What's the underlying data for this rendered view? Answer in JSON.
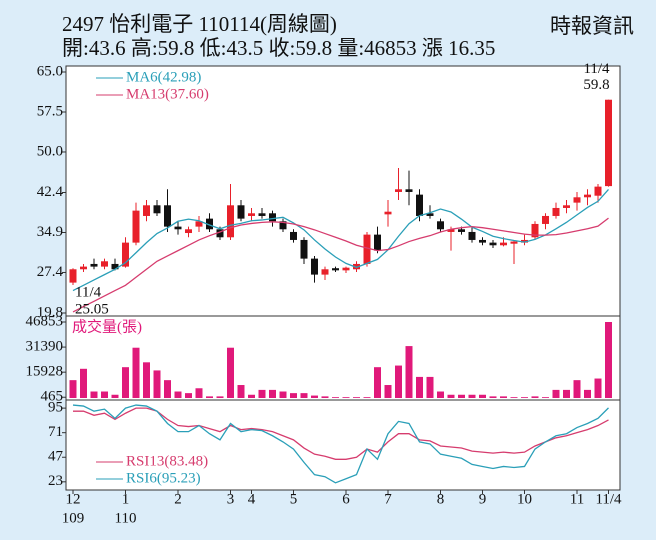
{
  "chart_data": [
    {
      "type": "candlestick",
      "title": "2497  怡利電子 110114(周線圖)",
      "subtitle": "開:43.6 高:59.8 低:43.5 收:59.8 量:46853 漲 16.35",
      "source": "時報資訊",
      "open": [
        25.5,
        28,
        29,
        28.5,
        29,
        28.5,
        33,
        38,
        40,
        40,
        36,
        34.8,
        36,
        37.5,
        35.5,
        34,
        40,
        38,
        38.5,
        38.5,
        37,
        35,
        33.5,
        30,
        27,
        28.2,
        27.8,
        28,
        29,
        34.5,
        38.3,
        42.5,
        43,
        42,
        38.5,
        37,
        35,
        35.5,
        35,
        33.5,
        33,
        32.5,
        32.8,
        33,
        34,
        36.5,
        38,
        39.5,
        40.5,
        41.5,
        41.8,
        43.6
      ],
      "high": [
        28.2,
        29,
        30,
        30,
        30,
        34,
        40.5,
        41,
        41,
        43,
        37,
        36,
        38,
        38.5,
        36,
        44,
        41,
        39.5,
        39.5,
        39,
        37.5,
        35.5,
        34,
        30.5,
        28.5,
        28.5,
        28.5,
        29.5,
        35,
        36,
        41,
        47,
        46.5,
        43,
        40,
        37.5,
        36,
        36,
        36,
        34,
        33.5,
        34,
        33.5,
        34.5,
        37,
        38.5,
        40.5,
        41,
        42.5,
        43,
        44,
        59.8
      ],
      "low": [
        25.05,
        27.5,
        28,
        28,
        27.8,
        28.3,
        32.5,
        37,
        38,
        35,
        34.5,
        34,
        35,
        35,
        33.5,
        33.5,
        37,
        37,
        37.5,
        36,
        35,
        33,
        29,
        25.5,
        26,
        27.5,
        27.3,
        27.5,
        28.5,
        31,
        36,
        41,
        40,
        37,
        37.5,
        35,
        31.5,
        34.5,
        33,
        32.5,
        32,
        32.3,
        29,
        32.5,
        33.5,
        35.5,
        37.5,
        38.5,
        39,
        40,
        40.5,
        43.5
      ],
      "close": [
        28,
        28.5,
        28.5,
        29.5,
        28,
        33,
        39,
        40,
        38.5,
        36,
        35.5,
        35.5,
        37,
        35.5,
        34,
        40,
        37.5,
        38.5,
        38,
        37,
        35.5,
        33.5,
        30,
        27,
        28,
        27.8,
        28.3,
        29,
        34.5,
        31.5,
        38.8,
        43,
        42.5,
        38,
        38,
        35.5,
        35.5,
        35,
        33.5,
        33,
        32.5,
        33,
        33.2,
        33.5,
        36.5,
        38,
        39.5,
        40,
        41.5,
        42,
        43.5,
        59.8
      ],
      "up_color": "#e8202a",
      "down_color": "#111111",
      "series": [
        {
          "name": "MA6(42.98)",
          "color": "#2a9fb8",
          "values": [
            24,
            25,
            26,
            27,
            28,
            29.25,
            31.1,
            33,
            34.7,
            35.75,
            37,
            37.4,
            37.1,
            36.3,
            35.6,
            36.25,
            36.6,
            37.1,
            37.25,
            37.5,
            37.75,
            36.7,
            35.4,
            33.5,
            31.8,
            30.3,
            29.1,
            28.35,
            29.1,
            29.85,
            31.65,
            34.2,
            36.55,
            38.05,
            38.6,
            39.3,
            38.75,
            37.4,
            35.9,
            35.1,
            34.2,
            33.75,
            33.4,
            33.1,
            33.6,
            34.45,
            35.6,
            36.8,
            38.2,
            39.6,
            40.75,
            42.98
          ]
        },
        {
          "name": "MA13(37.60)",
          "color": "#d63c6e",
          "values": [
            20,
            21,
            22,
            23,
            24,
            25,
            26.5,
            28,
            29.5,
            30.5,
            31.5,
            32.5,
            33.5,
            34.3,
            35,
            35.8,
            36.3,
            36.6,
            36.8,
            36.9,
            36.8,
            36.5,
            36,
            35.4,
            34.7,
            34,
            33.3,
            32.5,
            32,
            31.5,
            31.7,
            32.4,
            33.2,
            33.8,
            34.3,
            35,
            35.5,
            35.8,
            36,
            35.8,
            35.5,
            35.2,
            34.9,
            34.6,
            34.4,
            34.4,
            34.5,
            34.8,
            35.2,
            35.6,
            36.1,
            37.6
          ]
        }
      ],
      "ylim": [
        19.8,
        65
      ],
      "yticks": [
        19.8,
        27.4,
        34.9,
        42.4,
        {
          "value": 50,
          "label": "50.0"
        },
        57.5,
        {
          "value": 65,
          "label": "65.0"
        }
      ],
      "annotations": [
        {
          "x": 51,
          "text": "11/4",
          "value": 59.8
        },
        {
          "x": 0,
          "text": "11/4",
          "value": 25.05
        }
      ]
    },
    {
      "type": "bar",
      "title": "成交量(張)",
      "values": [
        11000,
        18000,
        4000,
        4000,
        2000,
        19000,
        31000,
        22000,
        17000,
        11000,
        4000,
        3000,
        6000,
        1000,
        1000,
        31000,
        8000,
        2000,
        5000,
        5000,
        4000,
        3000,
        3000,
        1500,
        1000,
        500,
        500,
        500,
        500,
        19000,
        8000,
        20000,
        32000,
        13000,
        13000,
        4000,
        2000,
        2000,
        2000,
        2000,
        1000,
        1000,
        500,
        500,
        1000,
        500,
        5000,
        5000,
        11000,
        5000,
        12000,
        46853
      ],
      "color": "#e0197a",
      "ylim": [
        0,
        46853
      ],
      "yticks": [
        465,
        15928,
        31390,
        46853
      ]
    },
    {
      "type": "line",
      "series": [
        {
          "name": "RSI13(83.48)",
          "color": "#d63c6e",
          "values": [
            92,
            92,
            88,
            90,
            84,
            90,
            95,
            95,
            92,
            84,
            78,
            77,
            78,
            75,
            72,
            78,
            74,
            75,
            74,
            72,
            68,
            64,
            56,
            50,
            48,
            45,
            45,
            47,
            55,
            52,
            62,
            70,
            70,
            64,
            63,
            58,
            57,
            56,
            53,
            52,
            51,
            52,
            51,
            52,
            58,
            62,
            66,
            68,
            71,
            74,
            78,
            83.48
          ]
        },
        {
          "name": "RSI6(95.23)",
          "color": "#2a9fb8",
          "values": [
            98,
            97,
            92,
            94,
            85,
            95,
            98,
            97,
            92,
            80,
            72,
            72,
            78,
            70,
            64,
            80,
            72,
            74,
            73,
            68,
            62,
            55,
            42,
            30,
            28,
            22,
            26,
            30,
            55,
            45,
            70,
            82,
            80,
            62,
            60,
            50,
            48,
            46,
            40,
            38,
            36,
            38,
            37,
            38,
            55,
            62,
            68,
            70,
            76,
            80,
            85,
            95.23
          ]
        }
      ],
      "ylim": [
        15,
        100
      ],
      "yticks": [
        23,
        47,
        71,
        95
      ],
      "xticks": [
        {
          "value": 0,
          "label": "12"
        },
        {
          "value": 5,
          "label": "1"
        },
        {
          "value": 10,
          "label": "2"
        },
        {
          "value": 15,
          "label": "3"
        },
        {
          "value": 17,
          "label": "4"
        },
        {
          "value": 21,
          "label": "5"
        },
        {
          "value": 26,
          "label": "6"
        },
        {
          "value": 30,
          "label": "7"
        },
        {
          "value": 35,
          "label": "8"
        },
        {
          "value": 39,
          "label": "9"
        },
        {
          "value": 43,
          "label": "10"
        },
        {
          "value": 48,
          "label": "11"
        },
        {
          "value": 51,
          "label": "11/4"
        }
      ],
      "xsubticks": [
        {
          "value": 0,
          "label": "109"
        },
        {
          "value": 5,
          "label": "110"
        }
      ]
    }
  ]
}
